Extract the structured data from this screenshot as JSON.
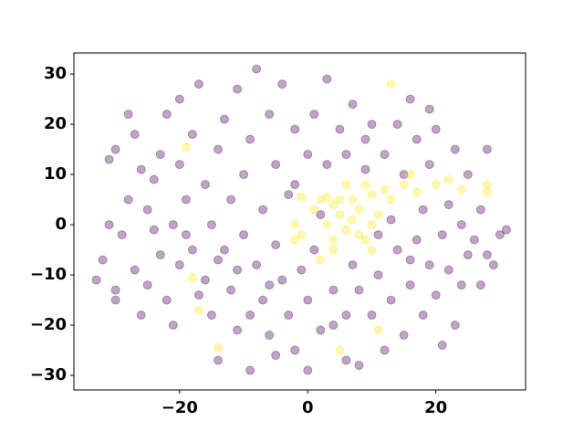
{
  "chart_data": {
    "type": "scatter",
    "xlim": [
      -36.5,
      34
    ],
    "ylim": [
      -32.9,
      34.2
    ],
    "xticks": [
      {
        "value": -20,
        "label": "−20"
      },
      0,
      20
    ],
    "yticks": [
      {
        "value": -30,
        "label": "−30"
      },
      {
        "value": -20,
        "label": "−20"
      },
      {
        "value": -10,
        "label": "−10"
      },
      0,
      10,
      20,
      30
    ],
    "series": [
      {
        "color": "#440154",
        "x": [
          -33,
          -31,
          -30,
          -31,
          -29,
          -28,
          -30,
          -30,
          -28,
          -27,
          -26,
          -27,
          -25,
          -25,
          -24,
          -23,
          -23,
          -22,
          -22,
          -21,
          -21,
          -20,
          -20,
          -19,
          -18,
          -18,
          -17,
          -16,
          -16,
          -15,
          -15,
          -14,
          -14,
          -13,
          -13,
          -12,
          -12,
          -11,
          -11,
          -10,
          -10,
          -9,
          -9,
          -8,
          -8,
          -7,
          -7,
          -6,
          -6,
          -5,
          -5,
          -4,
          -4,
          -3,
          -3,
          -2,
          -2,
          -1,
          0,
          0,
          1,
          1,
          2,
          3,
          3,
          4,
          5,
          6,
          6,
          7,
          7,
          8,
          8,
          9,
          9,
          10,
          10,
          11,
          12,
          12,
          13,
          13,
          14,
          14,
          15,
          15,
          16,
          16,
          17,
          17,
          18,
          18,
          19,
          19,
          20,
          20,
          21,
          22,
          22,
          23,
          23,
          24,
          24,
          25,
          25,
          26,
          27,
          27,
          28,
          28,
          29,
          30,
          31,
          -32,
          -26,
          -19,
          -17,
          -11,
          -5,
          0,
          6,
          19,
          -9,
          4,
          -2,
          2,
          -6,
          21,
          -14,
          -20,
          -24,
          16,
          11
        ],
        "y": [
          -11,
          13,
          15,
          0,
          -2,
          5,
          -13,
          -15,
          22,
          18,
          11,
          -9,
          -12,
          3,
          9,
          -6,
          14,
          22,
          -15,
          0,
          -20,
          12,
          25,
          5,
          -5,
          18,
          28,
          -11,
          8,
          0,
          -18,
          15,
          -27,
          21,
          -5,
          5,
          -13,
          27,
          -21,
          10,
          -2,
          -29,
          17,
          31,
          -8,
          3,
          -15,
          22,
          -22,
          12,
          -4,
          28,
          -11,
          6,
          -18,
          19,
          -25,
          -9,
          14,
          -15,
          22,
          -5,
          -21,
          29,
          12,
          -13,
          19,
          -18,
          14,
          -8,
          24,
          -28,
          -13,
          17,
          11,
          -18,
          20,
          -10,
          -25,
          14,
          -15,
          1,
          20,
          -5,
          -22,
          10,
          -12,
          25,
          -3,
          17,
          -18,
          3,
          -8,
          12,
          -14,
          19,
          -2,
          4,
          -9,
          -20,
          15,
          -12,
          0,
          10,
          -6,
          -3,
          3,
          -12,
          15,
          -6,
          -8,
          -2,
          -1,
          -7,
          -18,
          -2,
          -14,
          -9,
          -26,
          -29,
          -27,
          23,
          -18,
          -20,
          8,
          2,
          -12,
          -24,
          -7,
          -8,
          -1,
          -7,
          -2
        ]
      },
      {
        "color": "#fde725",
        "x": [
          -19,
          -17,
          -18,
          -14,
          13,
          5,
          11,
          22,
          28,
          28,
          17,
          20,
          24,
          -1,
          -2,
          -1,
          -2,
          1,
          2,
          3,
          4,
          5,
          6,
          7,
          8,
          9,
          10,
          11,
          12,
          13,
          15,
          16,
          9,
          4,
          3,
          5,
          6,
          7,
          8,
          10,
          4,
          2,
          10
        ],
        "y": [
          15.5,
          -17,
          -10.5,
          -24.5,
          28,
          -25,
          -21,
          9,
          8,
          6.5,
          6.5,
          8,
          7,
          5.5,
          0,
          -2,
          -3,
          3,
          5,
          5.5,
          4,
          5,
          8,
          5,
          3,
          8,
          6,
          2,
          7,
          5,
          8,
          10,
          -3,
          -3,
          0,
          2,
          -1,
          1,
          -2,
          0,
          -5,
          -7,
          -5
        ]
      }
    ]
  }
}
